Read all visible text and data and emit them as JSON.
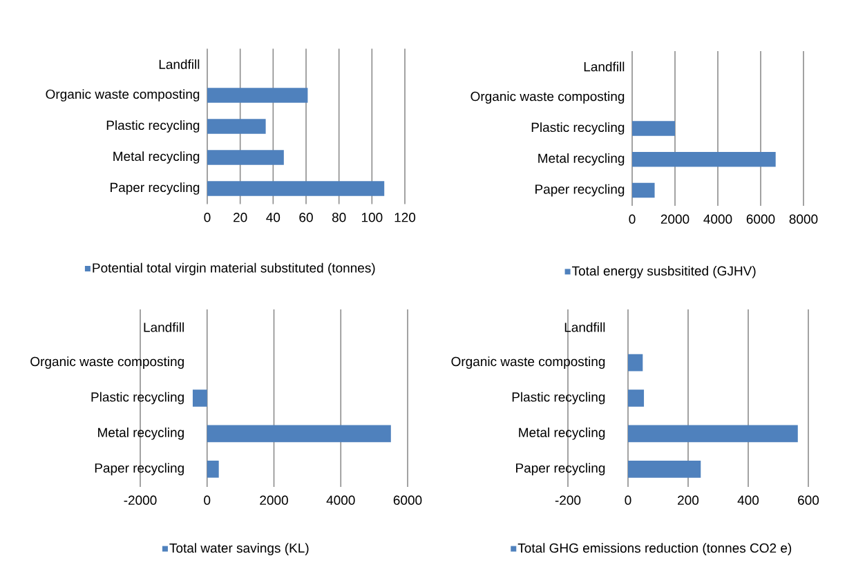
{
  "chart_data": [
    {
      "type": "bar",
      "orientation": "horizontal",
      "categories": [
        "Landfill",
        "Organic waste composting",
        "Plastic recycling",
        "Metal recycling",
        "Paper recycling"
      ],
      "series": [
        {
          "name": "Potential total virgin material substituted (tonnes)",
          "color": "#4f81bd",
          "values": [
            0,
            61,
            35.5,
            46.5,
            107.5
          ]
        }
      ],
      "xlim": [
        0,
        120
      ],
      "xticks": [
        0,
        20,
        40,
        60,
        80,
        100,
        120
      ],
      "grid": "x",
      "legend": "bottom"
    },
    {
      "type": "bar",
      "orientation": "horizontal",
      "categories": [
        "Landfill",
        "Organic waste composting",
        "Plastic recycling",
        "Metal recycling",
        "Paper recycling"
      ],
      "series": [
        {
          "name": "Total energy susbsitited (GJHV)",
          "color": "#4f81bd",
          "values": [
            0,
            0,
            2000,
            6700,
            1050
          ]
        }
      ],
      "xlim": [
        0,
        8000
      ],
      "xticks": [
        0,
        2000,
        4000,
        6000,
        8000
      ],
      "grid": "x",
      "legend": "bottom"
    },
    {
      "type": "bar",
      "orientation": "horizontal",
      "categories": [
        "Landfill",
        "Organic waste composting",
        "Plastic recycling",
        "Metal recycling",
        "Paper recycling"
      ],
      "series": [
        {
          "name": "Total water savings (KL)",
          "color": "#4f81bd",
          "values": [
            0,
            0,
            -430,
            5500,
            350
          ]
        }
      ],
      "xlim": [
        -2000,
        6000
      ],
      "xticks": [
        -2000,
        0,
        2000,
        4000,
        6000
      ],
      "grid": "x",
      "legend": "bottom"
    },
    {
      "type": "bar",
      "orientation": "horizontal",
      "categories": [
        "Landfill",
        "Organic waste composting",
        "Plastic recycling",
        "Metal recycling",
        "Paper recycling"
      ],
      "series": [
        {
          "name": "Total GHG emissions reduction (tonnes CO2 e)",
          "color": "#4f81bd",
          "values": [
            0,
            49,
            53,
            565,
            242
          ]
        }
      ],
      "xlim": [
        -200,
        600
      ],
      "xticks": [
        -200,
        0,
        200,
        400,
        600
      ],
      "grid": "x",
      "legend": "bottom"
    }
  ]
}
